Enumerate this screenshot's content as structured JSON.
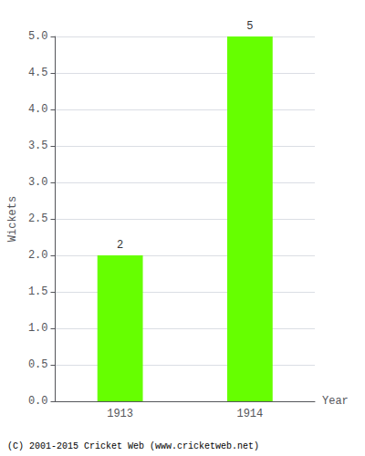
{
  "chart_data": {
    "type": "bar",
    "categories": [
      "1913",
      "1914"
    ],
    "values": [
      2,
      5
    ],
    "color": "#66ff00",
    "xlabel": "Year",
    "ylabel": "Wickets",
    "ylim": [
      0,
      5.0
    ],
    "yticks": [
      {
        "value": 0,
        "label": "0.0"
      },
      0.5,
      {
        "value": 1,
        "label": "1.0"
      },
      1.5,
      {
        "value": 2,
        "label": "2.0"
      },
      2.5,
      {
        "value": 3,
        "label": "3.0"
      },
      3.5,
      {
        "value": 4,
        "label": "4.0"
      },
      4.5,
      {
        "value": 5,
        "label": "5.0"
      }
    ],
    "grid": true,
    "data_labels": true,
    "annotations": [
      "(C) 2001-2015 Cricket Web (www.cricketweb.net)"
    ]
  }
}
